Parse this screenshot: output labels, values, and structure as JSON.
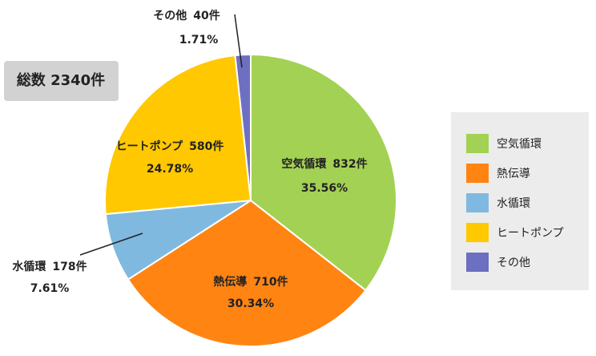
{
  "chart_data": {
    "type": "pie",
    "annotation": "総数 2340件",
    "categories": [
      "空気循環",
      "熱伝導",
      "水循環",
      "ヒートポンプ",
      "その他"
    ],
    "values": [
      832,
      710,
      178,
      580,
      40
    ],
    "value_labels": [
      "832件",
      "710件",
      "178件",
      "580件",
      "40件"
    ],
    "percents": [
      35.56,
      30.34,
      7.61,
      24.78,
      1.71
    ],
    "percent_labels": [
      "35.56%",
      "30.34%",
      "7.61%",
      "24.78%",
      "1.71%"
    ],
    "colors": [
      "#a3d154",
      "#ff8412",
      "#80b9e0",
      "#ffc800",
      "#6d6fc0"
    ],
    "legend": "right"
  }
}
